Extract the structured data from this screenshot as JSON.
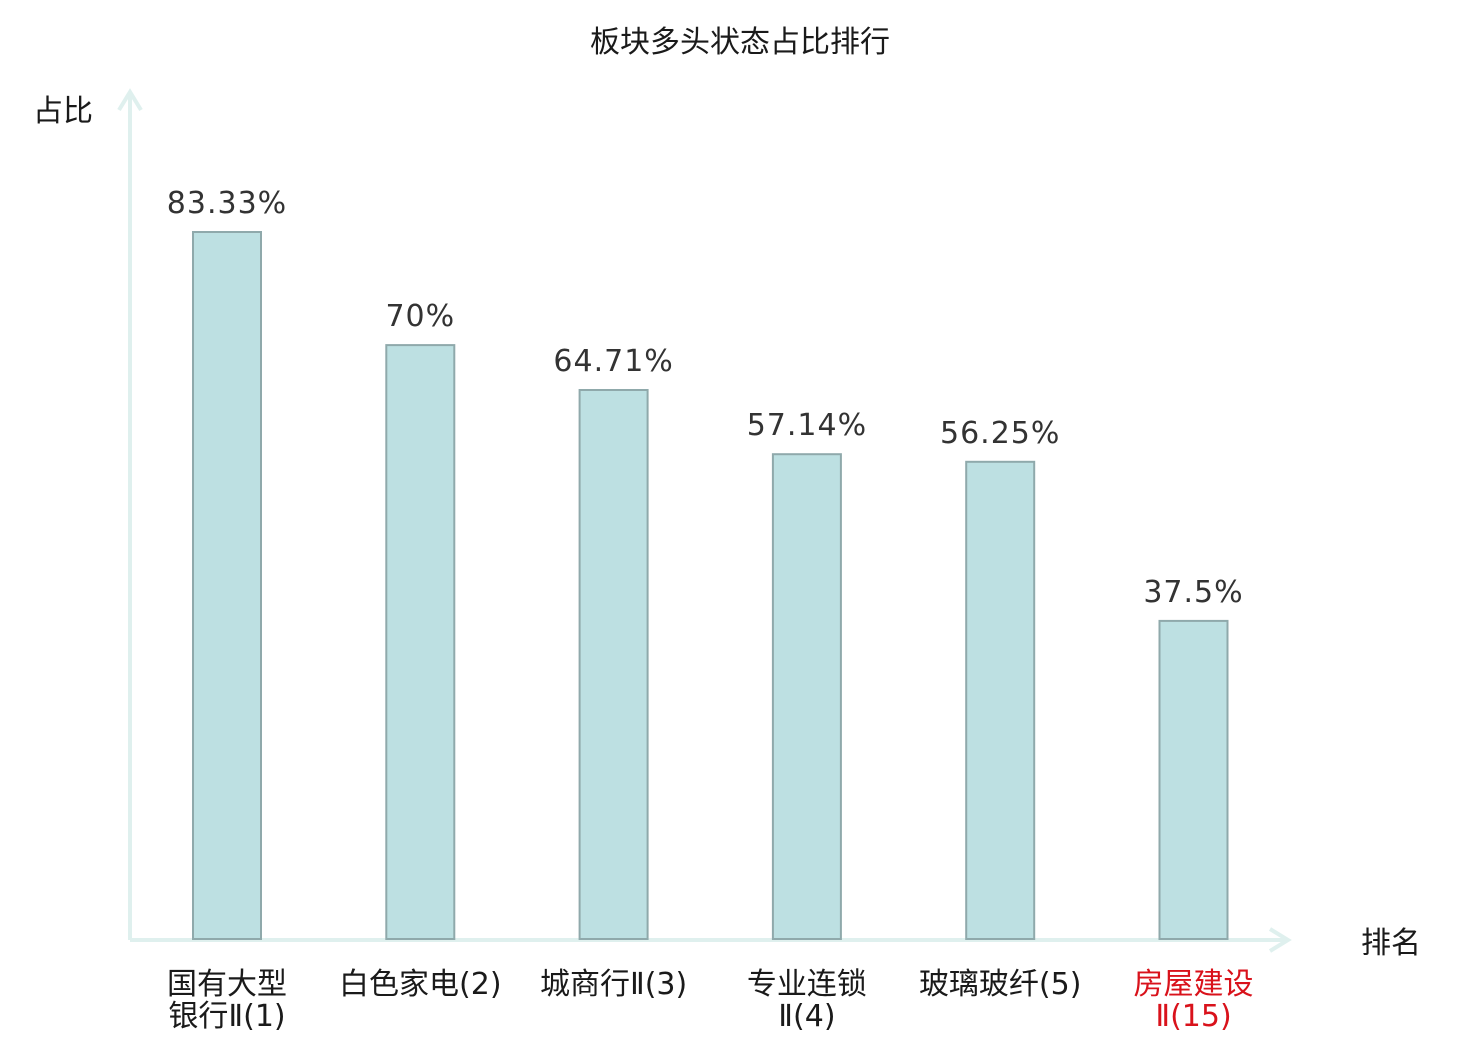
{
  "chart_data": {
    "type": "bar",
    "title": "板块多头状态占比排行",
    "xlabel": "排名",
    "ylabel": "占比",
    "categories": [
      [
        "国有大型",
        "银行Ⅱ(1)"
      ],
      [
        "白色家电(2)"
      ],
      [
        "城商行Ⅱ(3)"
      ],
      [
        "专业连锁",
        "Ⅱ(4)"
      ],
      [
        "玻璃玻纤(5)"
      ],
      [
        "房屋建设",
        "Ⅱ(15)"
      ]
    ],
    "values": [
      83.33,
      70,
      64.71,
      57.14,
      56.25,
      37.5
    ],
    "value_labels": [
      "83.33%",
      "70%",
      "64.71%",
      "57.14%",
      "56.25%",
      "37.5%"
    ],
    "highlight_index": 5,
    "ylim": [
      0,
      100
    ],
    "grid": false,
    "colors": {
      "bar_fill": "#bde0e2",
      "bar_stroke": "#8fa9ab",
      "axis": "#dff0ee",
      "highlight_text": "#d9121b",
      "text": "#1a1a1a"
    }
  }
}
